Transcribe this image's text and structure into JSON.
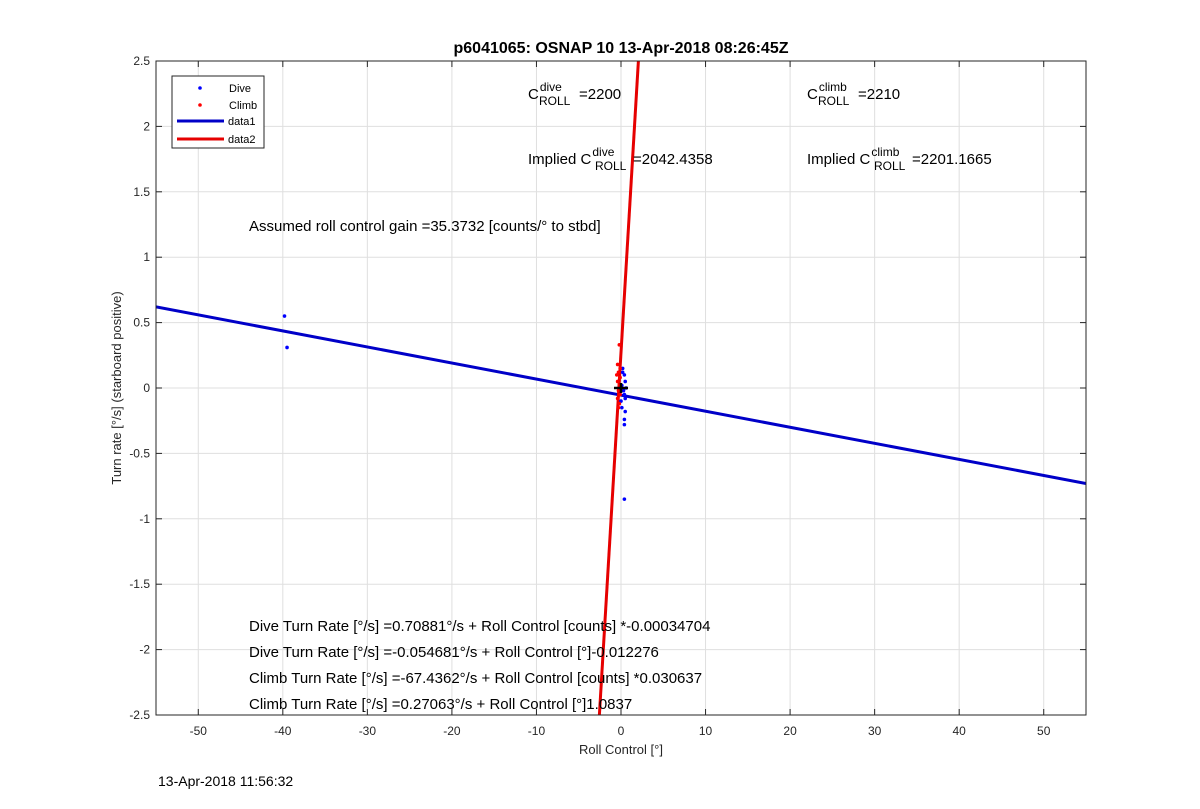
{
  "chart_data": {
    "type": "scatter",
    "title": "p6041065: OSNAP 10 13-Apr-2018 08:26:45Z",
    "xlabel": "Roll Control [°]",
    "ylabel": "Turn rate [°/s] (starboard positive)",
    "xlim": [
      -55,
      55
    ],
    "ylim": [
      -2.5,
      2.5
    ],
    "xticks": [
      -50,
      -40,
      -30,
      -20,
      -10,
      0,
      10,
      20,
      30,
      40,
      50
    ],
    "yticks": [
      -2.5,
      -2,
      -1.5,
      -1,
      -0.5,
      0,
      0.5,
      1,
      1.5,
      2,
      2.5
    ],
    "grid": true,
    "legend_position": "top-left",
    "legend": [
      "Dive",
      "Climb",
      "data1",
      "data2"
    ],
    "series": [
      {
        "name": "Dive",
        "style": "points",
        "color": "#0000ff",
        "points": [
          [
            -39.8,
            0.55
          ],
          [
            -39.5,
            0.31
          ],
          [
            0.4,
            -0.85
          ],
          [
            0.2,
            0.15
          ],
          [
            0.4,
            0.1
          ],
          [
            0.5,
            0.05
          ],
          [
            0.3,
            -0.02
          ],
          [
            0.5,
            -0.08
          ],
          [
            0.1,
            -0.15
          ],
          [
            0.5,
            -0.18
          ],
          [
            0.4,
            -0.24
          ],
          [
            0.4,
            -0.28
          ],
          [
            0.2,
            0.12
          ],
          [
            0.1,
            0.02
          ],
          [
            0.4,
            -0.05
          ],
          [
            0.0,
            -0.1
          ],
          [
            0.6,
            0.0
          ]
        ]
      },
      {
        "name": "Climb",
        "style": "points",
        "color": "#ff0000",
        "points": [
          [
            -0.2,
            0.33
          ],
          [
            -0.4,
            0.18
          ],
          [
            -0.3,
            0.12
          ],
          [
            -0.1,
            0.08
          ],
          [
            -0.4,
            0.05
          ],
          [
            -0.2,
            0.02
          ],
          [
            -0.3,
            -0.02
          ],
          [
            -0.1,
            -0.05
          ],
          [
            -0.4,
            -0.08
          ],
          [
            -0.2,
            -0.12
          ],
          [
            -0.3,
            -0.15
          ],
          [
            -0.1,
            0.15
          ],
          [
            -0.5,
            0.1
          ]
        ]
      },
      {
        "name": "data1",
        "style": "line",
        "color": "#0000c8",
        "slope": -0.012276,
        "intercept": -0.054681
      },
      {
        "name": "data2",
        "style": "line",
        "color": "#e60000",
        "slope": 1.0837,
        "intercept": 0.27063
      }
    ],
    "marker": {
      "x": 0,
      "y": 0,
      "color": "#000000"
    },
    "annotations": {
      "c_dive_label": "C",
      "c_dive_sup": "dive",
      "c_dive_sub": "ROLL",
      "c_dive_value": "=2200",
      "c_climb_label": "C",
      "c_climb_sup": "climb",
      "c_climb_sub": "ROLL",
      "c_climb_value": "=2210",
      "implied_dive_label": "Implied C",
      "implied_dive_sup": "dive",
      "implied_dive_sub": "ROLL",
      "implied_dive_value": "=2042.4358",
      "implied_climb_label": "Implied C",
      "implied_climb_sup": "climb",
      "implied_climb_sub": "ROLL",
      "implied_climb_value": "=2201.1665",
      "gain": "Assumed roll control gain =35.3732 [counts/° to stbd]",
      "eq1": "Dive Turn Rate [°/s] =0.70881°/s + Roll Control [counts] *-0.00034704",
      "eq2": "Dive Turn Rate [°/s] =-0.054681°/s + Roll Control [°]-0.012276",
      "eq3": "Climb Turn Rate [°/s] =-67.4362°/s + Roll Control [counts] *0.030637",
      "eq4": "Climb Turn Rate [°/s] =0.27063°/s + Roll Control [°]1.0837"
    }
  },
  "footer": {
    "timestamp": "13-Apr-2018 11:56:32"
  }
}
